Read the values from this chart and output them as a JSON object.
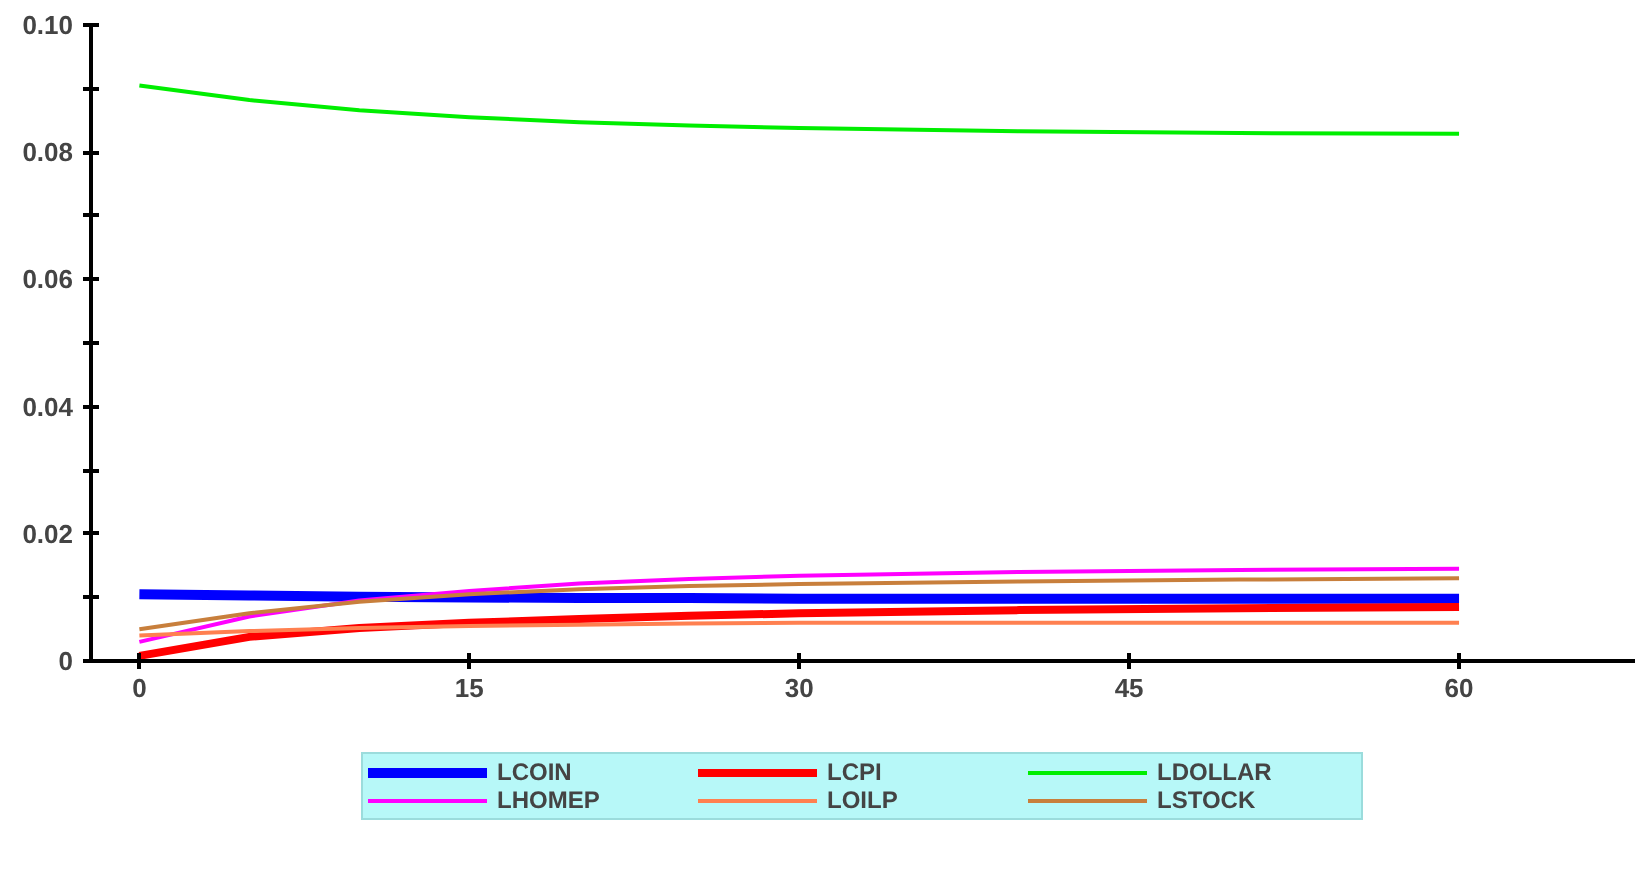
{
  "chart_data": {
    "type": "line",
    "legend": "bottom",
    "grid": false,
    "x": [
      0,
      5,
      10,
      15,
      20,
      25,
      30,
      40,
      50,
      60
    ],
    "xlim": [
      -2.2,
      68
    ],
    "xticks": [
      0,
      15,
      30,
      45,
      60
    ],
    "ylim": [
      0,
      0.1
    ],
    "yticks": [
      0,
      {
        "value": 0.01,
        "label": null
      },
      0.02,
      {
        "value": 0.03,
        "label": null
      },
      0.04,
      {
        "value": 0.05,
        "label": null
      },
      0.06,
      {
        "value": 0.07,
        "label": null
      },
      0.08,
      {
        "value": 0.09,
        "label": null
      },
      {
        "value": 0.1,
        "label": "0.10"
      }
    ],
    "series": [
      {
        "name": "LCOIN",
        "color": "#0000ff",
        "values": [
          0.0105,
          0.0103,
          0.0101,
          0.01,
          0.0099,
          0.0099,
          0.0098,
          0.0098,
          0.0098,
          0.0098
        ]
      },
      {
        "name": "LCPI",
        "color": "#ff0000",
        "values": [
          0.0008,
          0.0038,
          0.0052,
          0.006,
          0.0066,
          0.0071,
          0.0075,
          0.008,
          0.0083,
          0.0085
        ]
      },
      {
        "name": "LDOLLAR",
        "color": "#00ee00",
        "values": [
          0.0905,
          0.0882,
          0.0866,
          0.0855,
          0.0847,
          0.0842,
          0.0838,
          0.0833,
          0.083,
          0.0829
        ]
      },
      {
        "name": "LHOMEP",
        "color": "#ff00ff",
        "values": [
          0.003,
          0.007,
          0.0095,
          0.011,
          0.0122,
          0.0129,
          0.0134,
          0.014,
          0.0143,
          0.0145
        ]
      },
      {
        "name": "LOILP",
        "color": "#ff8050",
        "values": [
          0.004,
          0.0047,
          0.0052,
          0.0055,
          0.0057,
          0.0059,
          0.006,
          0.006,
          0.006,
          0.006
        ]
      },
      {
        "name": "LSTOCK",
        "color": "#c87f3c",
        "values": [
          0.005,
          0.0075,
          0.0093,
          0.0105,
          0.0113,
          0.0118,
          0.0121,
          0.0125,
          0.0128,
          0.013
        ]
      }
    ]
  }
}
